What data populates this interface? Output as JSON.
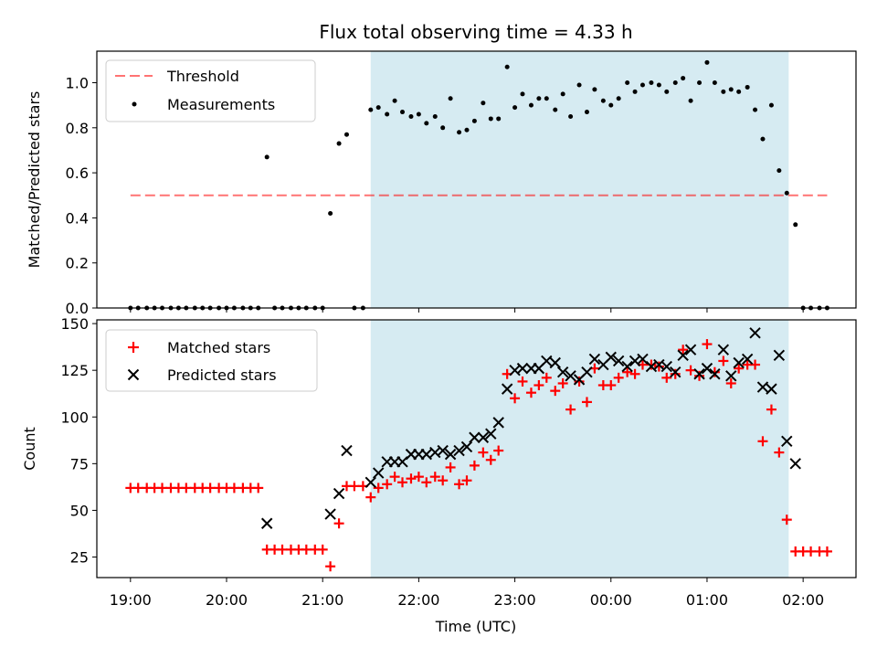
{
  "chart_data": {
    "title": "Flux total observing time = 4.33 h",
    "xlabel": "Time (UTC)",
    "x_units": "hours since 19:00 UTC",
    "xlim": [
      -0.35,
      7.55
    ],
    "x_ticks": [
      {
        "v": 0,
        "label": "19:00"
      },
      {
        "v": 1,
        "label": "20:00"
      },
      {
        "v": 2,
        "label": "21:00"
      },
      {
        "v": 3,
        "label": "22:00"
      },
      {
        "v": 4,
        "label": "23:00"
      },
      {
        "v": 5,
        "label": "00:00"
      },
      {
        "v": 6,
        "label": "01:00"
      },
      {
        "v": 7,
        "label": "02:00"
      }
    ],
    "observing_window": [
      2.5,
      6.85
    ],
    "top": {
      "type": "scatter",
      "ylabel": "Matched/Predicted stars",
      "ylim": [
        0,
        1.14
      ],
      "y_ticks": [
        {
          "v": 0.0,
          "label": "0.0"
        },
        {
          "v": 0.2,
          "label": "0.2"
        },
        {
          "v": 0.4,
          "label": "0.4"
        },
        {
          "v": 0.6,
          "label": "0.6"
        },
        {
          "v": 0.8,
          "label": "0.8"
        },
        {
          "v": 1.0,
          "label": "1.0"
        }
      ],
      "threshold": {
        "value": 0.5,
        "x_range": [
          0,
          7.25
        ]
      },
      "legend": {
        "threshold_label": "Threshold",
        "measurements_label": "Measurements",
        "position": "top-left"
      },
      "measurements": [
        [
          0,
          0
        ],
        [
          0.08,
          0
        ],
        [
          0.17,
          0
        ],
        [
          0.25,
          0
        ],
        [
          0.33,
          0
        ],
        [
          0.42,
          0
        ],
        [
          0.5,
          0
        ],
        [
          0.58,
          0
        ],
        [
          0.67,
          0
        ],
        [
          0.75,
          0
        ],
        [
          0.83,
          0
        ],
        [
          0.92,
          0
        ],
        [
          1.0,
          0
        ],
        [
          1.08,
          0
        ],
        [
          1.17,
          0
        ],
        [
          1.25,
          0
        ],
        [
          1.33,
          0
        ],
        [
          1.42,
          0.67
        ],
        [
          1.5,
          0
        ],
        [
          1.58,
          0
        ],
        [
          1.67,
          0
        ],
        [
          1.75,
          0
        ],
        [
          1.83,
          0
        ],
        [
          1.92,
          0
        ],
        [
          2.0,
          0
        ],
        [
          2.08,
          0.42
        ],
        [
          2.17,
          0.73
        ],
        [
          2.25,
          0.77
        ],
        [
          2.33,
          0
        ],
        [
          2.42,
          0
        ],
        [
          2.5,
          0.88
        ],
        [
          2.58,
          0.89
        ],
        [
          2.67,
          0.86
        ],
        [
          2.75,
          0.92
        ],
        [
          2.83,
          0.87
        ],
        [
          2.92,
          0.85
        ],
        [
          3.0,
          0.86
        ],
        [
          3.08,
          0.82
        ],
        [
          3.17,
          0.85
        ],
        [
          3.25,
          0.8
        ],
        [
          3.33,
          0.93
        ],
        [
          3.42,
          0.78
        ],
        [
          3.5,
          0.79
        ],
        [
          3.58,
          0.83
        ],
        [
          3.67,
          0.91
        ],
        [
          3.75,
          0.84
        ],
        [
          3.83,
          0.84
        ],
        [
          3.92,
          1.07
        ],
        [
          4.0,
          0.89
        ],
        [
          4.08,
          0.95
        ],
        [
          4.17,
          0.9
        ],
        [
          4.25,
          0.93
        ],
        [
          4.33,
          0.93
        ],
        [
          4.42,
          0.88
        ],
        [
          4.5,
          0.95
        ],
        [
          4.58,
          0.85
        ],
        [
          4.67,
          0.99
        ],
        [
          4.75,
          0.87
        ],
        [
          4.83,
          0.97
        ],
        [
          4.92,
          0.92
        ],
        [
          5.0,
          0.9
        ],
        [
          5.08,
          0.93
        ],
        [
          5.17,
          1.0
        ],
        [
          5.25,
          0.96
        ],
        [
          5.33,
          0.99
        ],
        [
          5.42,
          1.0
        ],
        [
          5.5,
          0.99
        ],
        [
          5.58,
          0.96
        ],
        [
          5.67,
          1.0
        ],
        [
          5.75,
          1.02
        ],
        [
          5.83,
          0.92
        ],
        [
          5.92,
          1.0
        ],
        [
          6.0,
          1.09
        ],
        [
          6.08,
          1.0
        ],
        [
          6.17,
          0.96
        ],
        [
          6.25,
          0.97
        ],
        [
          6.33,
          0.96
        ],
        [
          6.42,
          0.98
        ],
        [
          6.5,
          0.88
        ],
        [
          6.58,
          0.75
        ],
        [
          6.67,
          0.9
        ],
        [
          6.75,
          0.61
        ],
        [
          6.83,
          0.51
        ],
        [
          6.92,
          0.37
        ],
        [
          7.0,
          0
        ],
        [
          7.08,
          0
        ],
        [
          7.17,
          0
        ],
        [
          7.25,
          0
        ]
      ]
    },
    "bottom": {
      "type": "scatter",
      "ylabel": "Count",
      "ylim": [
        14,
        152
      ],
      "y_ticks": [
        {
          "v": 25,
          "label": "25"
        },
        {
          "v": 50,
          "label": "50"
        },
        {
          "v": 75,
          "label": "75"
        },
        {
          "v": 100,
          "label": "100"
        },
        {
          "v": 125,
          "label": "125"
        },
        {
          "v": 150,
          "label": "150"
        }
      ],
      "legend": {
        "matched_label": "Matched stars",
        "predicted_label": "Predicted stars",
        "position": "top-left"
      },
      "matched": [
        [
          0,
          62
        ],
        [
          0.08,
          62
        ],
        [
          0.17,
          62
        ],
        [
          0.25,
          62
        ],
        [
          0.33,
          62
        ],
        [
          0.42,
          62
        ],
        [
          0.5,
          62
        ],
        [
          0.58,
          62
        ],
        [
          0.67,
          62
        ],
        [
          0.75,
          62
        ],
        [
          0.83,
          62
        ],
        [
          0.92,
          62
        ],
        [
          1.0,
          62
        ],
        [
          1.08,
          62
        ],
        [
          1.17,
          62
        ],
        [
          1.25,
          62
        ],
        [
          1.33,
          62
        ],
        [
          1.42,
          29
        ],
        [
          1.5,
          29
        ],
        [
          1.58,
          29
        ],
        [
          1.67,
          29
        ],
        [
          1.75,
          29
        ],
        [
          1.83,
          29
        ],
        [
          1.92,
          29
        ],
        [
          2.0,
          29
        ],
        [
          2.08,
          20
        ],
        [
          2.17,
          43
        ],
        [
          2.25,
          63
        ],
        [
          2.33,
          63
        ],
        [
          2.42,
          63
        ],
        [
          2.5,
          57
        ],
        [
          2.58,
          62
        ],
        [
          2.67,
          64
        ],
        [
          2.75,
          68
        ],
        [
          2.83,
          65
        ],
        [
          2.92,
          67
        ],
        [
          3.0,
          68
        ],
        [
          3.08,
          65
        ],
        [
          3.17,
          68
        ],
        [
          3.25,
          66
        ],
        [
          3.33,
          73
        ],
        [
          3.42,
          64
        ],
        [
          3.5,
          66
        ],
        [
          3.58,
          74
        ],
        [
          3.67,
          81
        ],
        [
          3.75,
          77
        ],
        [
          3.83,
          82
        ],
        [
          3.92,
          123
        ],
        [
          4.0,
          110
        ],
        [
          4.08,
          119
        ],
        [
          4.17,
          113
        ],
        [
          4.25,
          117
        ],
        [
          4.33,
          121
        ],
        [
          4.42,
          114
        ],
        [
          4.5,
          118
        ],
        [
          4.58,
          104
        ],
        [
          4.67,
          119
        ],
        [
          4.75,
          108
        ],
        [
          4.83,
          126
        ],
        [
          4.92,
          117
        ],
        [
          5.0,
          117
        ],
        [
          5.08,
          121
        ],
        [
          5.17,
          124
        ],
        [
          5.25,
          123
        ],
        [
          5.33,
          128
        ],
        [
          5.42,
          128
        ],
        [
          5.5,
          127
        ],
        [
          5.58,
          121
        ],
        [
          5.67,
          123
        ],
        [
          5.75,
          136
        ],
        [
          5.83,
          125
        ],
        [
          5.92,
          122
        ],
        [
          6.0,
          139
        ],
        [
          6.08,
          124
        ],
        [
          6.17,
          130
        ],
        [
          6.25,
          118
        ],
        [
          6.33,
          126
        ],
        [
          6.42,
          128
        ],
        [
          6.5,
          128
        ],
        [
          6.58,
          87
        ],
        [
          6.67,
          104
        ],
        [
          6.75,
          81
        ],
        [
          6.83,
          45
        ],
        [
          6.92,
          28
        ],
        [
          7.0,
          28
        ],
        [
          7.08,
          28
        ],
        [
          7.17,
          28
        ],
        [
          7.25,
          28
        ]
      ],
      "predicted": [
        [
          1.42,
          43
        ],
        [
          2.08,
          48
        ],
        [
          2.17,
          59
        ],
        [
          2.25,
          82
        ],
        [
          2.5,
          65
        ],
        [
          2.58,
          70
        ],
        [
          2.67,
          76
        ],
        [
          2.75,
          76
        ],
        [
          2.83,
          76
        ],
        [
          2.92,
          80
        ],
        [
          3.0,
          80
        ],
        [
          3.08,
          80
        ],
        [
          3.17,
          81
        ],
        [
          3.25,
          82
        ],
        [
          3.33,
          80
        ],
        [
          3.42,
          82
        ],
        [
          3.5,
          84
        ],
        [
          3.58,
          89
        ],
        [
          3.67,
          89
        ],
        [
          3.75,
          91
        ],
        [
          3.83,
          97
        ],
        [
          3.92,
          115
        ],
        [
          4.0,
          125
        ],
        [
          4.08,
          126
        ],
        [
          4.17,
          126
        ],
        [
          4.25,
          126
        ],
        [
          4.33,
          130
        ],
        [
          4.42,
          129
        ],
        [
          4.5,
          124
        ],
        [
          4.58,
          122
        ],
        [
          4.67,
          120
        ],
        [
          4.75,
          124
        ],
        [
          4.83,
          131
        ],
        [
          4.92,
          128
        ],
        [
          5.0,
          132
        ],
        [
          5.08,
          130
        ],
        [
          5.17,
          127
        ],
        [
          5.25,
          130
        ],
        [
          5.33,
          131
        ],
        [
          5.42,
          127
        ],
        [
          5.5,
          128
        ],
        [
          5.58,
          127
        ],
        [
          5.67,
          124
        ],
        [
          5.75,
          133
        ],
        [
          5.83,
          136
        ],
        [
          5.92,
          123
        ],
        [
          6.0,
          126
        ],
        [
          6.08,
          123
        ],
        [
          6.17,
          136
        ],
        [
          6.25,
          122
        ],
        [
          6.33,
          129
        ],
        [
          6.42,
          131
        ],
        [
          6.5,
          145
        ],
        [
          6.58,
          116
        ],
        [
          6.67,
          115
        ],
        [
          6.75,
          133
        ],
        [
          6.83,
          87
        ],
        [
          6.92,
          75
        ]
      ]
    }
  }
}
